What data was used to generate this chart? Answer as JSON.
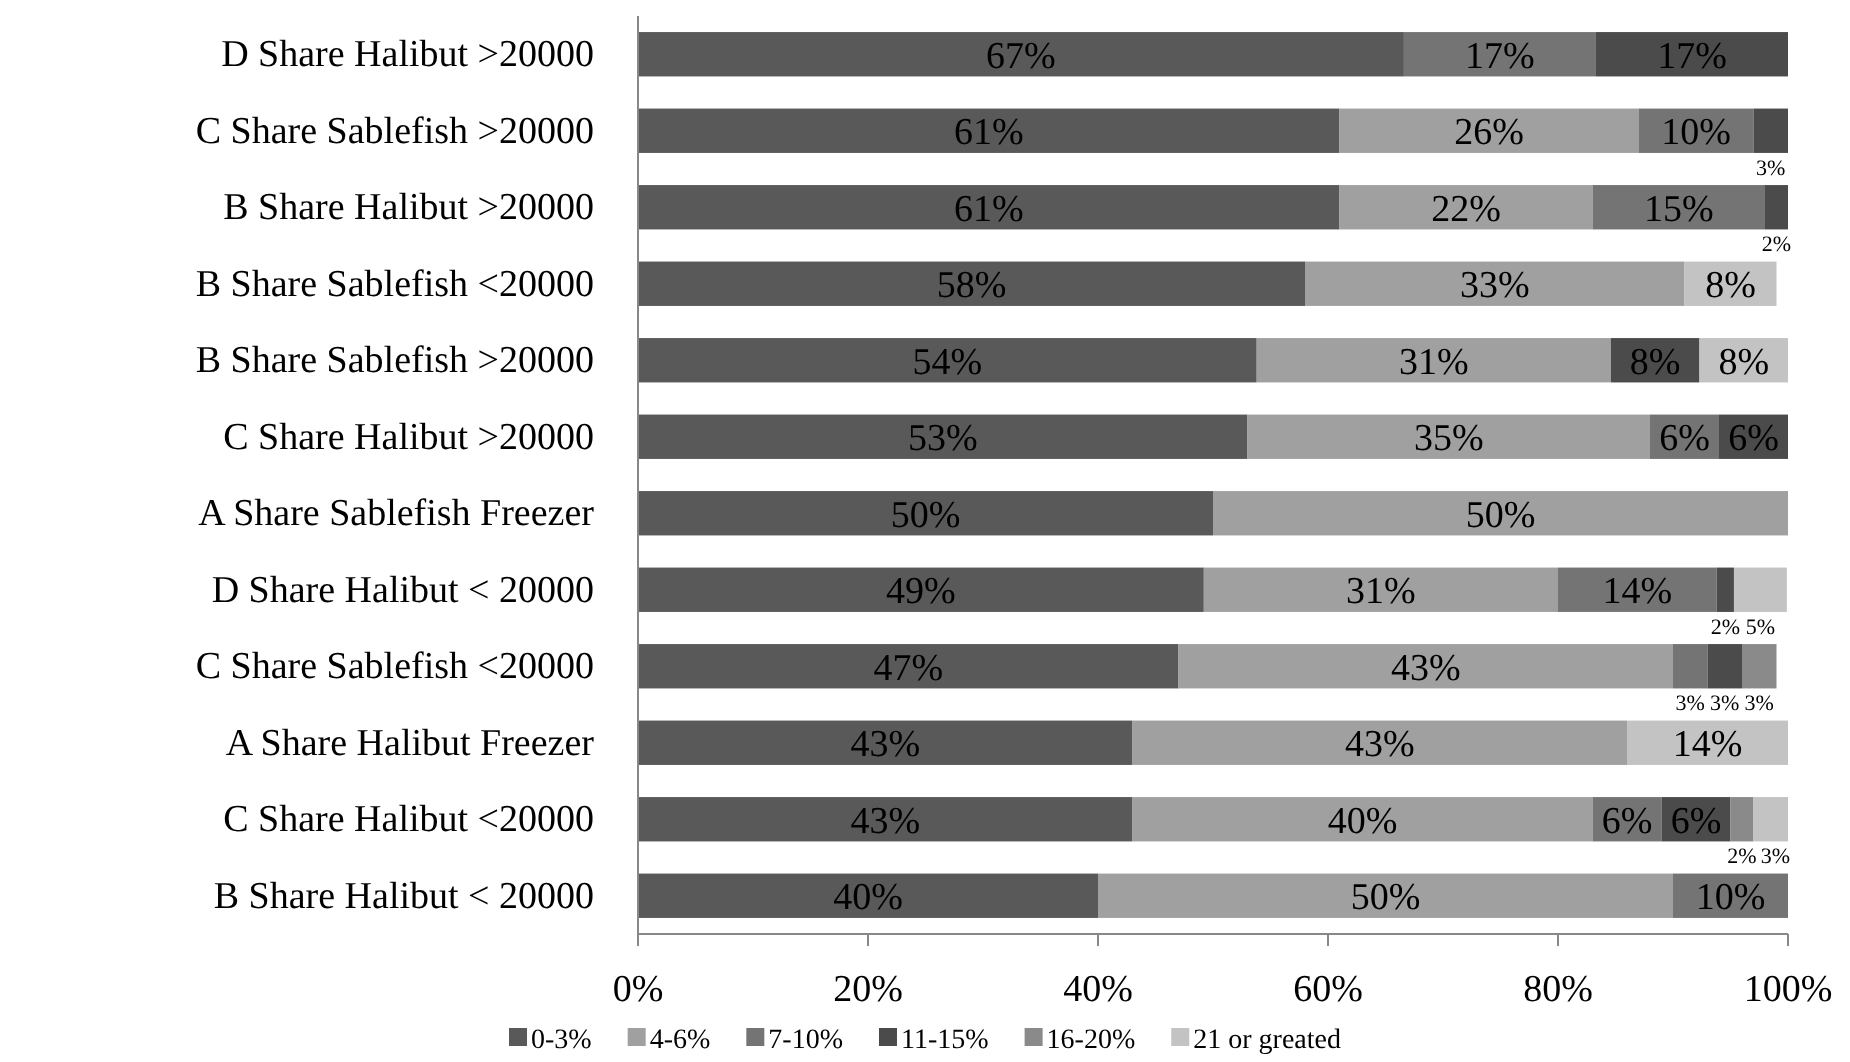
{
  "chart_data": {
    "type": "bar",
    "orientation": "horizontal",
    "stacked": true,
    "legend": "bottom",
    "grid": false,
    "categories": [
      "D Share Halibut >20000",
      "C  Share Sablefish >20000",
      "B Share Halibut >20000",
      "B Share Sablefish <20000",
      "B Share Sablefish >20000",
      "C Share Halibut >20000",
      "A  Share Sablefish Freezer",
      "D Share Halibut < 20000",
      "C Share Sablefish <20000",
      "A Share Halibut Freezer",
      "C Share  Halibut <20000",
      "B Share Halibut < 20000"
    ],
    "xlim": [
      0,
      100
    ],
    "xticks": [
      {
        "value": 0,
        "label": "0%"
      },
      {
        "value": 20,
        "label": "20%"
      },
      {
        "value": 40,
        "label": "40%"
      },
      {
        "value": 60,
        "label": "60%"
      },
      {
        "value": 80,
        "label": "80%"
      },
      {
        "value": 100,
        "label": "100%"
      }
    ],
    "series": [
      {
        "name": "0-3%",
        "color": "#595959",
        "values": [
          66.6,
          61,
          61,
          58,
          53.8,
          53,
          50,
          49.2,
          47,
          43,
          43,
          40
        ],
        "value_labels": [
          "67%",
          "61%",
          "61%",
          "58%",
          "54%",
          "53%",
          "50%",
          "49%",
          "47%",
          "43%",
          "43%",
          "40%"
        ]
      },
      {
        "name": "4-6%",
        "color": "#a0a0a0",
        "values": [
          null,
          26,
          22,
          33,
          30.8,
          35,
          50,
          30.8,
          43,
          43,
          40,
          50
        ],
        "value_labels": [
          null,
          "26%",
          "22%",
          "33%",
          "31%",
          "35%",
          "50%",
          "31%",
          "43%",
          "43%",
          "40%",
          "50%"
        ]
      },
      {
        "name": "7-10%",
        "color": "#747474",
        "values": [
          16.7,
          10,
          15,
          null,
          null,
          6,
          null,
          13.8,
          3,
          null,
          6,
          10
        ],
        "value_labels": [
          "17%",
          "10%",
          "15%",
          null,
          null,
          "6%",
          null,
          "14%",
          "3%",
          null,
          "6%",
          "10%"
        ]
      },
      {
        "name": "11-15%",
        "color": "#4b4b4b",
        "values": [
          16.7,
          3,
          2,
          null,
          7.7,
          6,
          null,
          1.5,
          3,
          null,
          6,
          null
        ],
        "value_labels": [
          "17%",
          "3%",
          "2%",
          null,
          "8%",
          "6%",
          null,
          "2%",
          "3%",
          null,
          "6%",
          null
        ]
      },
      {
        "name": "16-20%",
        "color": "#8a8a8a",
        "values": [
          null,
          null,
          null,
          null,
          null,
          null,
          null,
          null,
          3,
          null,
          2,
          null
        ],
        "value_labels": [
          null,
          null,
          null,
          null,
          null,
          null,
          null,
          null,
          "3%",
          null,
          "2%",
          null
        ]
      },
      {
        "name": "21 or greated",
        "color": "#c3c3c3",
        "values": [
          null,
          null,
          null,
          8,
          7.7,
          null,
          null,
          4.6,
          null,
          14,
          3,
          null
        ],
        "value_labels": [
          null,
          null,
          null,
          "8%",
          "8%",
          null,
          null,
          "5%",
          null,
          "14%",
          "3%",
          null
        ]
      }
    ]
  }
}
